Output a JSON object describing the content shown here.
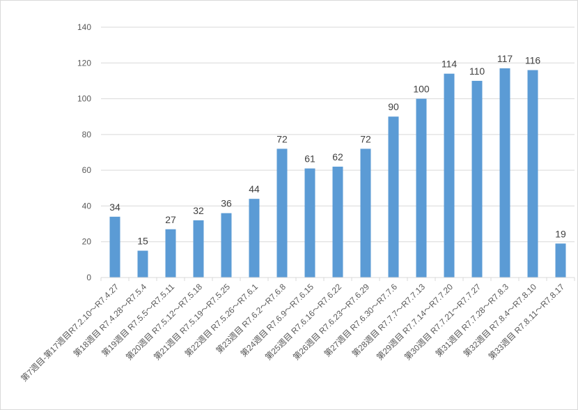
{
  "chart_data": {
    "type": "bar",
    "title": "",
    "xlabel": "",
    "ylabel": "",
    "ylim": [
      0,
      140
    ],
    "yticks": [
      0,
      20,
      40,
      60,
      80,
      100,
      120,
      140
    ],
    "grid": true,
    "bar_color": "#5B9BD5",
    "categories": [
      "第7週目-第17週目R7.2.10～R7.4.27",
      "第18週目 R7.4.28～R7.5.4",
      "第19週目 R7.5.5～R7.5.11",
      "第20週目 R7.5.12～R7.5.18",
      "第21週目 R7.5.19～R7.5.25",
      "第22週目 R7.5.26～R7.6.1",
      "第23週目 R7.6.2～R7.6.8",
      "第24週目 R7.6.9～R7.6.15",
      "第25週目 R7.6.16～R7.6.22",
      "第26週目 R7.6.23～R7.6.29",
      "第27週目 R7.6.30～R7.7.6",
      "第28週目 R7.7.7～R7.7.13",
      "第29週目 R7.7.14～R7.7.20",
      "第30週目 R7.7.21～R7.7.27",
      "第31週目 R7.7.28～R7.8.3",
      "第32週目 R7.8.4～R7.8.10",
      "第33週目 R7.8.11～R7.8.17"
    ],
    "values": [
      34,
      15,
      27,
      32,
      36,
      44,
      72,
      61,
      62,
      72,
      90,
      100,
      114,
      110,
      117,
      116,
      19
    ]
  }
}
